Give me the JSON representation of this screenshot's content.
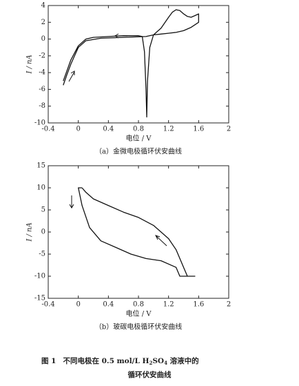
{
  "chart_data": [
    {
      "type": "line",
      "xlabel": "电位 / V",
      "ylabel": "I / nA",
      "caption": "（a）金微电极循环伏安曲线",
      "x": [
        -0.2,
        -0.15,
        -0.1,
        -0.05,
        0,
        0.1,
        0.3,
        0.6,
        0.9,
        1.0,
        1.1,
        1.2,
        1.25,
        1.3,
        1.35,
        1.4,
        1.45,
        1.5,
        1.55,
        1.6,
        1.6,
        1.5,
        1.4,
        1.3,
        1.2,
        1.1,
        1.0,
        0.95,
        0.92,
        0.91,
        0.9,
        0.88,
        0.85,
        0.8,
        0.6,
        0.4,
        0.2,
        0.1,
        0,
        -0.1,
        -0.2
      ],
      "series": [
        {
          "color": "#111111",
          "values": [
            -5.5,
            -4.2,
            -3,
            -2,
            -1,
            -0.2,
            0.1,
            0.2,
            0.3,
            0.5,
            1.3,
            2.6,
            3.2,
            3.5,
            3.4,
            3.0,
            2.7,
            2.6,
            2.8,
            3.0,
            2.0,
            1.4,
            1.0,
            0.8,
            0.7,
            0.6,
            0.5,
            -1,
            -5,
            -9.3,
            -6,
            -1.5,
            0.3,
            0.4,
            0.4,
            0.3,
            0.2,
            0,
            -0.8,
            -2.5,
            -5.0
          ]
        }
      ],
      "xlim": [
        -0.4,
        2.0
      ],
      "xticks": [
        -0.4,
        0,
        0.4,
        0.8,
        1.2,
        1.6,
        2.0
      ],
      "ylim": [
        -10,
        4
      ],
      "yticks": [
        -10,
        -8,
        -6,
        -4,
        -2,
        0,
        2,
        4
      ]
    },
    {
      "type": "line",
      "xlabel": "电位 / V",
      "ylabel": "I / nA",
      "caption": "（b）玻碳电极循环伏安曲线",
      "x": [
        0.05,
        0.1,
        0.2,
        0.4,
        0.6,
        0.8,
        1.0,
        1.2,
        1.3,
        1.4,
        1.45,
        1.55,
        1.35,
        1.3,
        1.1,
        0.9,
        0.7,
        0.5,
        0.3,
        0.15,
        0.05,
        0.0,
        0.05
      ],
      "series": [
        {
          "color": "#111111",
          "values": [
            10,
            9,
            7.5,
            6,
            4.5,
            3.3,
            1.5,
            -1.5,
            -4,
            -8,
            -10,
            -10,
            -10,
            -8,
            -6.5,
            -6,
            -5,
            -3.5,
            -2,
            1,
            6,
            10,
            10
          ]
        }
      ],
      "xlim": [
        -0.4,
        2.0
      ],
      "xticks": [
        -0.4,
        0,
        0.4,
        0.8,
        1.2,
        1.6,
        2.0
      ],
      "ylim": [
        -15,
        15
      ],
      "yticks": [
        -15,
        -10,
        -5,
        0,
        5,
        10,
        15
      ]
    }
  ],
  "figure_caption": {
    "label": "图 1",
    "text": "不同电极在 0.5 mol/L H",
    "sub1": "2",
    "mid": "SO",
    "sub2": "4",
    "after": " 溶液中的",
    "line2": "循环伏安曲线"
  }
}
